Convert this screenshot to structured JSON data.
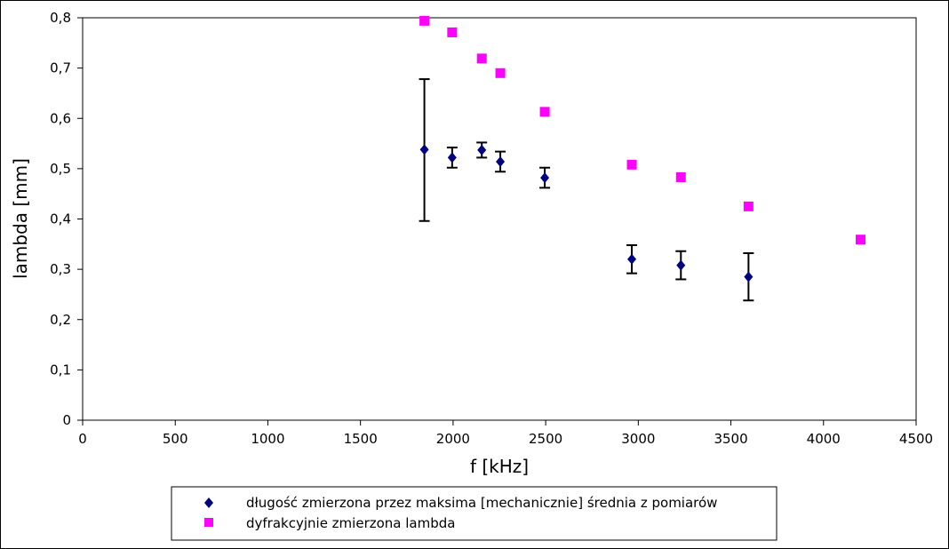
{
  "chart_data": {
    "type": "scatter",
    "title": "",
    "xlabel": "f [kHz]",
    "ylabel": "lambda [mm]",
    "xlim": [
      0,
      4500
    ],
    "ylim": [
      0,
      0.8
    ],
    "x_ticks": [
      0,
      500,
      1000,
      1500,
      2000,
      2500,
      3000,
      3500,
      4000,
      4500
    ],
    "x_tick_labels": [
      "0",
      "500",
      "1000",
      "1500",
      "2000",
      "2500",
      "3000",
      "3500",
      "4000",
      "4500"
    ],
    "y_ticks": [
      0,
      0.1,
      0.2,
      0.3,
      0.4,
      0.5,
      0.6,
      0.7,
      0.8
    ],
    "y_tick_labels": [
      "0",
      "0,1",
      "0,2",
      "0,3",
      "0,4",
      "0,5",
      "0,6",
      "0,7",
      "0,8"
    ],
    "grid": false,
    "legend_position": "bottom-center",
    "series": [
      {
        "name": "długość zmierzona przez maksima [mechanicznie] średnia z pomiarów",
        "marker": "diamond",
        "color": "#000080",
        "x": [
          1845,
          1995,
          2155,
          2255,
          2495,
          2965,
          3230,
          3595
        ],
        "y": [
          0.538,
          0.522,
          0.537,
          0.514,
          0.482,
          0.32,
          0.308,
          0.285
        ],
        "error_low": [
          0.396,
          0.502,
          0.522,
          0.494,
          0.462,
          0.292,
          0.28,
          0.238
        ],
        "error_high": [
          0.678,
          0.542,
          0.552,
          0.534,
          0.502,
          0.348,
          0.336,
          0.332
        ]
      },
      {
        "name": "dyfrakcyjnie zmierzona lambda",
        "marker": "square",
        "color": "#ff00ff",
        "x": [
          1845,
          1995,
          2155,
          2255,
          2495,
          2965,
          3230,
          3595,
          4200
        ],
        "y": [
          0.794,
          0.771,
          0.719,
          0.69,
          0.613,
          0.508,
          0.483,
          0.425,
          0.359
        ]
      }
    ]
  }
}
